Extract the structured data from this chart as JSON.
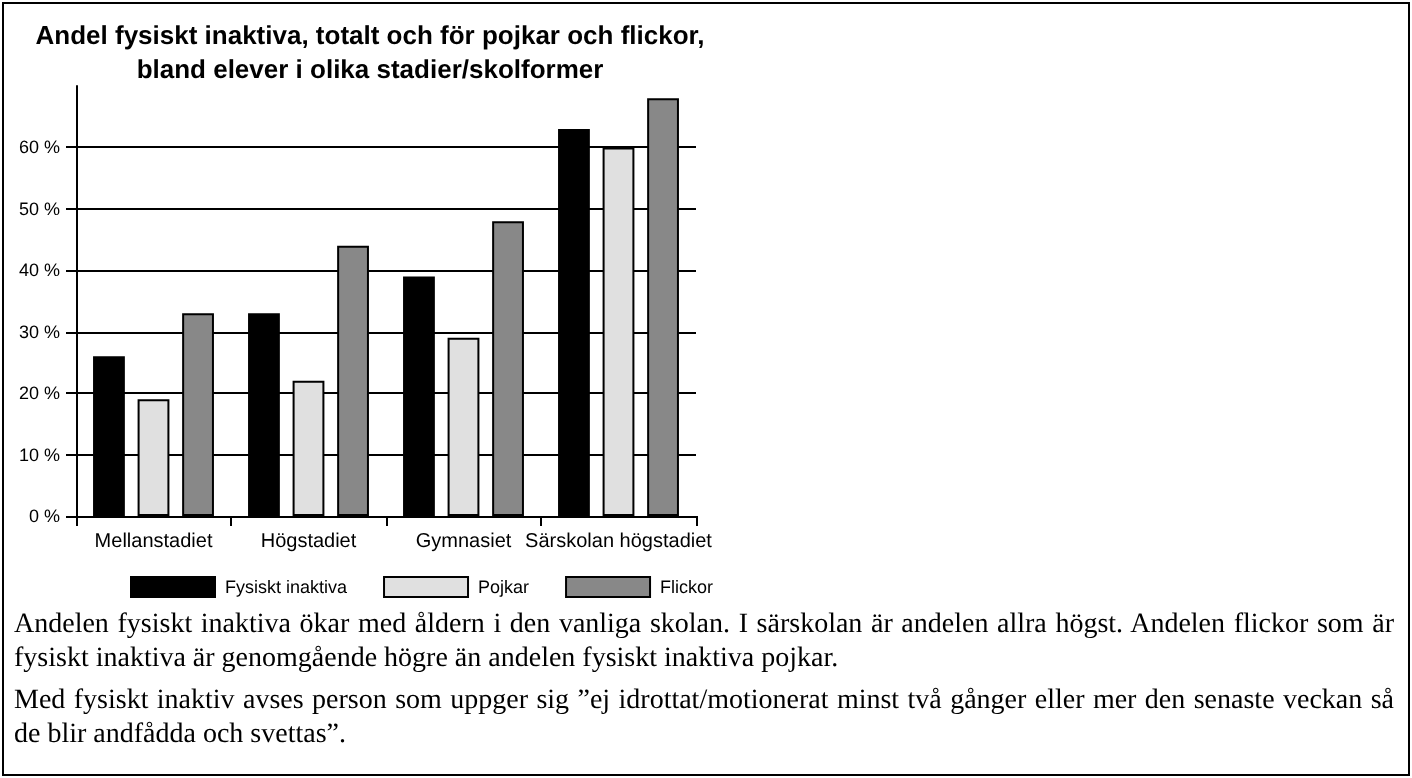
{
  "chart_data": {
    "type": "bar",
    "title": "Andel fysiskt inaktiva, totalt och för pojkar och flickor,\nbland elever i olika stadier/skolformer",
    "categories": [
      "Mellanstadiet",
      "Högstadiet",
      "Gymnasiet",
      "Särskolan högstadiet"
    ],
    "series": [
      {
        "name": "Fysiskt inaktiva",
        "color": "#000000",
        "values": [
          26,
          33,
          39,
          63
        ]
      },
      {
        "name": "Pojkar",
        "color": "#e0e0e0",
        "values": [
          19,
          22,
          29,
          60
        ]
      },
      {
        "name": "Flickor",
        "color": "#888888",
        "values": [
          33,
          44,
          48,
          68
        ]
      }
    ],
    "ylim": [
      0,
      70
    ],
    "yticks": [
      {
        "value": 0,
        "label": "0 %"
      },
      {
        "value": 10,
        "label": "10 %"
      },
      {
        "value": 20,
        "label": "20 %"
      },
      {
        "value": 30,
        "label": "30 %"
      },
      {
        "value": 40,
        "label": "40 %"
      },
      {
        "value": 50,
        "label": "50 %"
      },
      {
        "value": 60,
        "label": "60 %"
      }
    ],
    "grid": "y",
    "legend": "bottom",
    "annotations": [
      "Andelen fysiskt inaktiva ökar med åldern i den vanliga skolan. I särskolan är andelen allra högst.  Andelen flickor som är fysiskt inaktiva är genomgående högre än andelen fysiskt inaktiva pojkar.",
      "Med fysiskt inaktiv avses person som uppger sig ”ej idrottat/motionerat minst två gånger eller mer den senaste veckan så de blir andfådda och svettas”."
    ]
  }
}
